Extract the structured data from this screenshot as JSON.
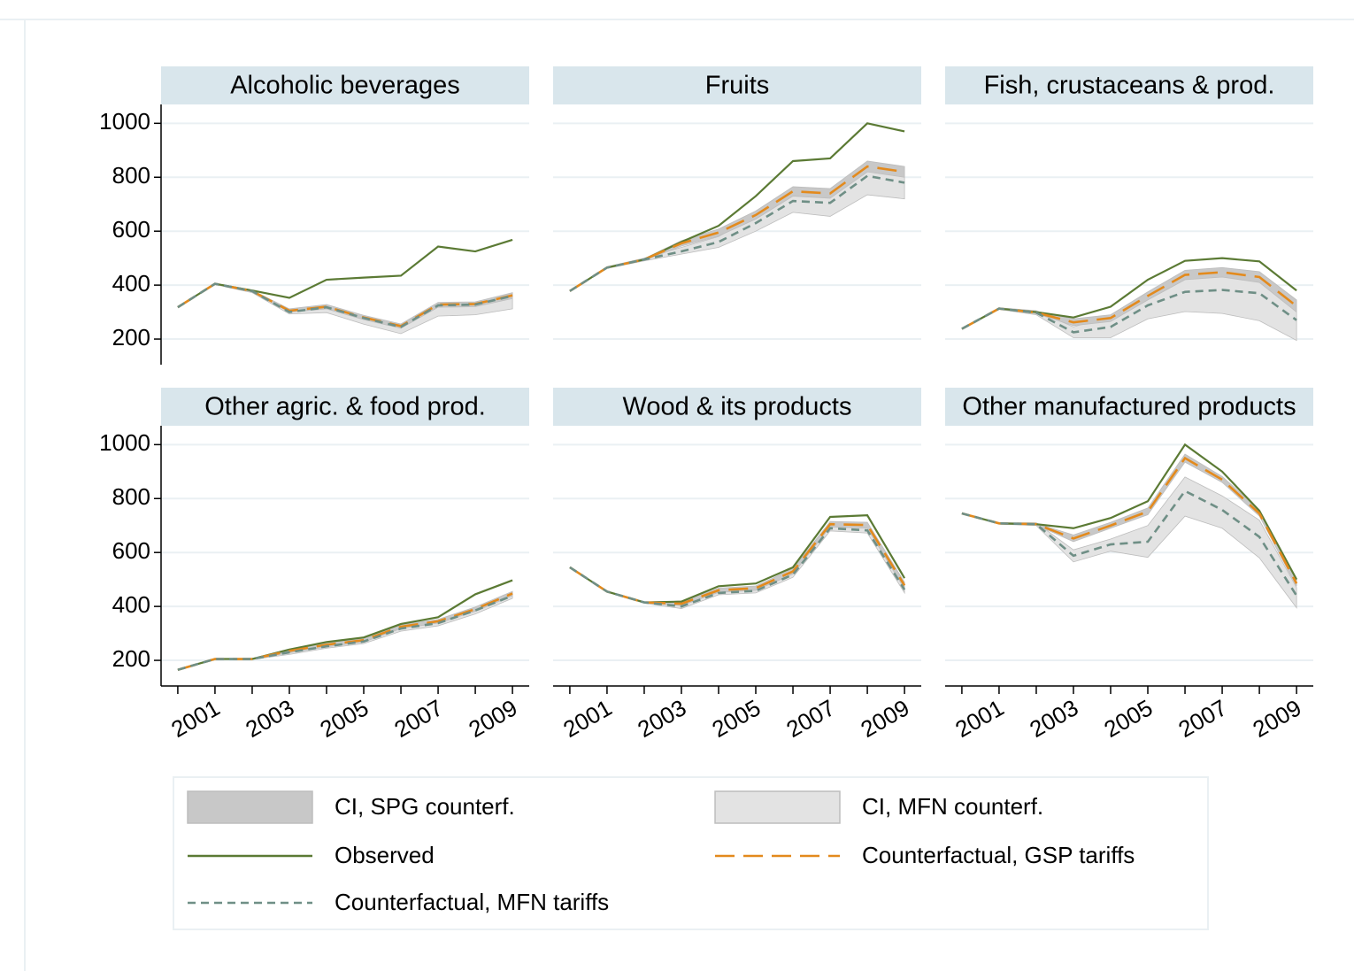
{
  "chart_data": {
    "type": "line",
    "x": [
      2000,
      2001,
      2002,
      2003,
      2004,
      2005,
      2006,
      2007,
      2008,
      2009
    ],
    "xlim": [
      1999.55,
      2009.45
    ],
    "xticks": [
      2001,
      2003,
      2005,
      2007,
      2009
    ],
    "xminorticks": [
      2000,
      2002,
      2004,
      2006,
      2008
    ],
    "ylim": [
      105,
      1070
    ],
    "yticks": [
      200,
      400,
      600,
      800,
      1000
    ],
    "grid": true,
    "bands": [
      {
        "name": "CI, SPG counterf.",
        "color": "#c8c8c8"
      },
      {
        "name": "CI, MFN counterf.",
        "color": "#e3e3e3"
      }
    ],
    "series": [
      {
        "name": "Observed",
        "color": "#5b7a34",
        "dash": "none"
      },
      {
        "name": "Counterfactual, GSP tariffs",
        "color": "#e38a1d",
        "dash": "22 10"
      },
      {
        "name": "Counterfactual, MFN tariffs",
        "color": "#6f8f86",
        "dash": "9 6"
      }
    ],
    "panels": [
      {
        "title": "Alcoholic beverages",
        "bands": [
          {
            "lower": [
              318,
              403,
              375,
              300,
              312,
              272,
              240,
              318,
              320,
              350
            ],
            "upper": [
              318,
              407,
              381,
              312,
              328,
              288,
              256,
              336,
              338,
              372
            ]
          },
          {
            "lower": [
              318,
              402,
              372,
              293,
              298,
              255,
              220,
              285,
              290,
              312
            ],
            "upper": [
              318,
              407,
              381,
              308,
              324,
              284,
              252,
              332,
              334,
              366
            ]
          }
        ],
        "series": [
          {
            "values": [
              318,
              405,
              380,
              353,
              420,
              428,
              435,
              543,
              525,
              568
            ]
          },
          {
            "values": [
              318,
              405,
              378,
              305,
              320,
              280,
              248,
              328,
              330,
              362
            ]
          },
          {
            "values": [
              318,
              405,
              378,
              300,
              318,
              278,
              245,
              325,
              328,
              360
            ]
          }
        ]
      },
      {
        "title": "Fruits",
        "bands": [
          {
            "lower": [
              378,
              463,
              492,
              545,
              582,
              645,
              730,
              722,
              820,
              800
            ],
            "upper": [
              378,
              467,
              498,
              565,
              608,
              675,
              765,
              758,
              860,
              840
            ]
          },
          {
            "lower": [
              378,
              462,
              490,
              515,
              540,
              600,
              670,
              655,
              735,
              720
            ],
            "upper": [
              378,
              468,
              500,
              540,
              580,
              660,
              740,
              735,
              835,
              815
            ]
          }
        ],
        "series": [
          {
            "values": [
              378,
              465,
              495,
              560,
              620,
              730,
              860,
              870,
              1000,
              970
            ]
          },
          {
            "values": [
              378,
              465,
              495,
              555,
              595,
              660,
              748,
              740,
              840,
              820
            ]
          },
          {
            "values": [
              378,
              465,
              495,
              525,
              560,
              630,
              712,
              705,
              805,
              780
            ]
          }
        ]
      },
      {
        "title": "Fish, crustaceans & prod.",
        "bands": [
          {
            "lower": [
              238,
              311,
              294,
              250,
              265,
              345,
              420,
              430,
              410,
              300
            ],
            "upper": [
              238,
              315,
              302,
              275,
              290,
              375,
              455,
              465,
              450,
              345
            ]
          },
          {
            "lower": [
              238,
              310,
              290,
              205,
              205,
              275,
              302,
              295,
              268,
              195
            ],
            "upper": [
              238,
              316,
              305,
              245,
              285,
              360,
              425,
              440,
              440,
              320
            ]
          }
        ],
        "series": [
          {
            "values": [
              238,
              313,
              300,
              280,
              320,
              420,
              490,
              500,
              488,
              380
            ]
          },
          {
            "values": [
              238,
              313,
              298,
              262,
              278,
              360,
              438,
              448,
              430,
              322
            ]
          },
          {
            "values": [
              238,
              313,
              298,
              225,
              245,
              325,
              375,
              382,
              370,
              270
            ]
          }
        ]
      },
      {
        "title": "Other agric. & food prod.",
        "bands": [
          {
            "lower": [
              165,
              203,
              203,
              228,
              250,
              268,
              318,
              338,
              382,
              440
            ],
            "upper": [
              165,
              207,
              207,
              242,
              266,
              282,
              332,
              352,
              398,
              456
            ]
          },
          {
            "lower": [
              165,
              203,
              203,
              222,
              245,
              262,
              308,
              328,
              372,
              430
            ],
            "upper": [
              165,
              207,
              207,
              238,
              262,
              280,
              330,
              350,
              395,
              452
            ]
          }
        ],
        "series": [
          {
            "values": [
              165,
              205,
              205,
              240,
              268,
              285,
              335,
              360,
              445,
              497
            ]
          },
          {
            "values": [
              165,
              205,
              205,
              235,
              258,
              275,
              325,
              345,
              390,
              448
            ]
          },
          {
            "values": [
              165,
              205,
              205,
              230,
              252,
              270,
              318,
              338,
              385,
              440
            ]
          }
        ]
      },
      {
        "title": "Wood & its products",
        "bands": [
          {
            "lower": [
              545,
              453,
              413,
              403,
              452,
              460,
              520,
              695,
              690,
              465
            ],
            "upper": [
              545,
              457,
              417,
              418,
              468,
              476,
              540,
              715,
              712,
              490
            ]
          },
          {
            "lower": [
              545,
              453,
              412,
              392,
              443,
              450,
              508,
              680,
              672,
              450
            ],
            "upper": [
              545,
              457,
              418,
              412,
              462,
              470,
              535,
              705,
              700,
              480
            ]
          }
        ],
        "series": [
          {
            "values": [
              545,
              455,
              415,
              418,
              475,
              485,
              545,
              732,
              738,
              505
            ]
          },
          {
            "values": [
              545,
              455,
              415,
              410,
              460,
              468,
              530,
              705,
              702,
              478
            ]
          },
          {
            "values": [
              545,
              455,
              415,
              400,
              450,
              458,
              518,
              690,
              682,
              462
            ]
          }
        ]
      },
      {
        "title": "Other manufactured products",
        "bands": [
          {
            "lower": [
              745,
              706,
              702,
              640,
              690,
              740,
              935,
              860,
              735,
              475
            ],
            "upper": [
              745,
              710,
              708,
              665,
              712,
              765,
              965,
              882,
              758,
              498
            ]
          },
          {
            "lower": [
              745,
              705,
              700,
              565,
              605,
              582,
              735,
              690,
              580,
              395
            ],
            "upper": [
              745,
              711,
              710,
              610,
              650,
              700,
              880,
              810,
              720,
              470
            ]
          }
        ],
        "series": [
          {
            "values": [
              745,
              708,
              705,
              690,
              728,
              790,
              1000,
              900,
              755,
              500
            ]
          },
          {
            "values": [
              745,
              708,
              705,
              652,
              700,
              752,
              950,
              870,
              745,
              485
            ]
          },
          {
            "values": [
              745,
              708,
              705,
              588,
              630,
              640,
              828,
              758,
              658,
              440
            ]
          }
        ]
      }
    ]
  }
}
